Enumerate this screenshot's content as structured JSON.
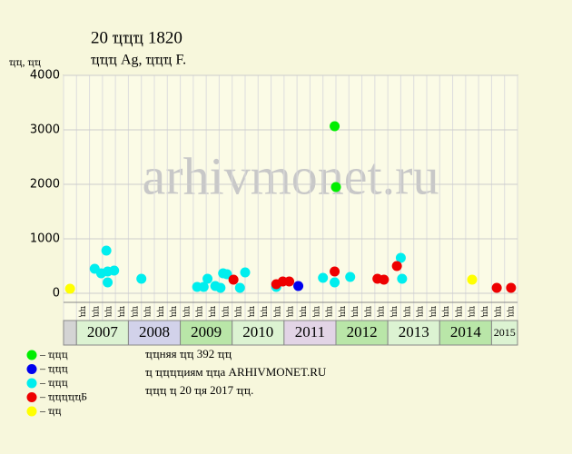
{
  "chart_data": {
    "type": "scatter",
    "title": "20 ҵҵҵ 1820",
    "subtitle": "ҵҵҵ Ag, ҵҵҵ F.",
    "ylabel": "ҵҵ, ҵҵ",
    "watermark": "arhivmonet.ru",
    "xlim": [
      0,
      35
    ],
    "ylim": [
      0,
      4000
    ],
    "yticks": [
      0,
      1000,
      2000,
      3000,
      4000
    ],
    "grid": true,
    "column_labels": [
      null,
      "ҵҵ",
      "ҵҵ",
      "ҵҵ",
      "ҵҵ",
      "ҵҵ",
      "ҵҵ",
      "ҵҵ",
      "ҵҵ",
      "ҵҵ",
      "ҵҵ",
      "ҵҵ",
      "ҵҵ",
      "ҵҵ",
      "ҵҵ",
      "ҵҵ",
      "ҵҵ",
      "ҵҵ",
      "ҵҵ",
      "ҵҵ",
      "ҵҵ",
      "ҵҵ",
      "ҵҵ",
      "ҵҵ",
      "ҵҵ",
      "ҵҵ",
      "ҵҵ",
      "ҵҵ",
      "ҵҵ",
      "ҵҵ",
      "ҵҵ",
      "ҵҵ",
      "ҵҵ",
      "ҵҵ",
      "ҵҵ"
    ],
    "years": [
      {
        "label": "2007",
        "start": 1,
        "end": 5,
        "color": "#dcf3d2"
      },
      {
        "label": "2008",
        "start": 5,
        "end": 9,
        "color": "#d2d2ea"
      },
      {
        "label": "2009",
        "start": 9,
        "end": 13,
        "color": "#b9e6a8"
      },
      {
        "label": "2010",
        "start": 13,
        "end": 17,
        "color": "#dcf3d2"
      },
      {
        "label": "2011",
        "start": 17,
        "end": 21,
        "color": "#e2d4e6"
      },
      {
        "label": "2012",
        "start": 21,
        "end": 25,
        "color": "#b9e6a8"
      },
      {
        "label": "2013",
        "start": 25,
        "end": 29,
        "color": "#dcf3d2"
      },
      {
        "label": "2014",
        "start": 29,
        "end": 33,
        "color": "#b9e6a8"
      },
      {
        "label": "2015",
        "start": 33,
        "end": 35,
        "color": "#dcf3d2"
      }
    ],
    "series": [
      {
        "name": "– ҵҵҵ",
        "color": "#00ee00",
        "x": [
          20.9,
          21.0
        ],
        "values": [
          3067,
          1950
        ]
      },
      {
        "name": "– ҵҵҵ",
        "color": "#0000ee",
        "x": [
          18.1
        ],
        "values": [
          133
        ]
      },
      {
        "name": "– ҵҵҵ",
        "color": "#00eeee",
        "x": [
          2.4,
          2.9,
          3.4,
          3.3,
          3.4,
          3.9,
          6.0,
          10.3,
          10.8,
          11.1,
          11.7,
          12.1,
          12.3,
          12.6,
          13.6,
          14.0,
          16.4,
          20.0,
          20.9,
          22.1,
          26.0,
          26.1
        ],
        "values": [
          450,
          367,
          400,
          783,
          200,
          417,
          267,
          117,
          117,
          267,
          133,
          100,
          367,
          350,
          100,
          383,
          117,
          283,
          200,
          300,
          650,
          267
        ]
      },
      {
        "name": "– ҵҵҵҵҵБ",
        "color": "#ee0000",
        "x": [
          13.1,
          16.4,
          16.9,
          17.4,
          20.9,
          24.2,
          24.7,
          25.7,
          33.4,
          34.5
        ],
        "values": [
          250,
          167,
          217,
          217,
          400,
          267,
          250,
          500,
          100,
          100
        ]
      },
      {
        "name": "– ҵҵ",
        "color": "#ffff00",
        "x": [
          0.5,
          31.5
        ],
        "values": [
          83,
          250
        ]
      }
    ],
    "notes": [
      "ҵҵняя ҵҵ 392 ҵҵ",
      "ҵ ҵҵҵҵиям ҵҵа ARHIVMONET.RU",
      "ҵҵҵ ҵ 20 ҵя 2017 ҵҵ."
    ]
  }
}
